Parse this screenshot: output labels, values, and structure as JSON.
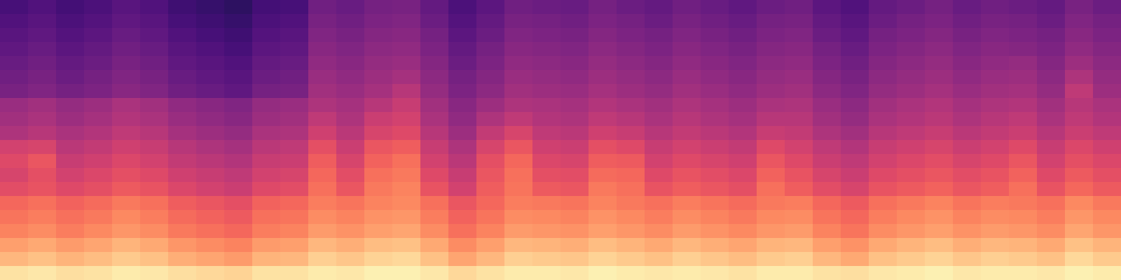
{
  "chart_data": {
    "type": "heatmap",
    "tick_labels": false,
    "zlim": [
      0,
      100
    ],
    "cells": [
      [
        94,
        95,
        93,
        94,
        96,
        95,
        93,
        92,
        91,
        94,
        94,
        96,
        95,
        97,
        97,
        95,
        92,
        94,
        96,
        96,
        95,
        97,
        96,
        95,
        96,
        95,
        94,
        96,
        96,
        94,
        93,
        95,
        96,
        97,
        95,
        96,
        96,
        95,
        97,
        96
      ],
      [
        85,
        87,
        84,
        86,
        89,
        87,
        83,
        81,
        79,
        84,
        85,
        90,
        88,
        91,
        92,
        87,
        81,
        85,
        90,
        89,
        88,
        91,
        89,
        87,
        90,
        88,
        86,
        89,
        90,
        85,
        82,
        87,
        89,
        91,
        88,
        90,
        89,
        87,
        92,
        89
      ],
      [
        80,
        82,
        79,
        81,
        84,
        82,
        78,
        76,
        74,
        79,
        80,
        85,
        83,
        86,
        87,
        82,
        76,
        80,
        85,
        84,
        83,
        86,
        84,
        82,
        85,
        83,
        81,
        84,
        85,
        80,
        77,
        82,
        84,
        86,
        83,
        85,
        84,
        82,
        87,
        84
      ],
      [
        74,
        76,
        73,
        75,
        78,
        76,
        72,
        70,
        68,
        73,
        74,
        79,
        77,
        80,
        81,
        76,
        70,
        74,
        79,
        78,
        77,
        80,
        78,
        76,
        79,
        77,
        75,
        78,
        79,
        74,
        71,
        76,
        78,
        80,
        77,
        79,
        78,
        76,
        81,
        78
      ],
      [
        71,
        73,
        70,
        72,
        75,
        73,
        69,
        67,
        65,
        70,
        71,
        76,
        74,
        77,
        78,
        73,
        67,
        71,
        76,
        75,
        74,
        77,
        75,
        73,
        76,
        74,
        72,
        75,
        76,
        71,
        68,
        73,
        75,
        77,
        74,
        76,
        75,
        73,
        78,
        75
      ],
      [
        68,
        70,
        67,
        69,
        72,
        70,
        66,
        64,
        62,
        67,
        68,
        73,
        71,
        74,
        75,
        70,
        64,
        68,
        73,
        72,
        71,
        74,
        72,
        70,
        73,
        71,
        69,
        72,
        73,
        68,
        65,
        70,
        72,
        74,
        71,
        73,
        72,
        70,
        75,
        72
      ],
      [
        61,
        63,
        60,
        62,
        65,
        63,
        59,
        57,
        55,
        60,
        61,
        70,
        64,
        72,
        74,
        63,
        57,
        66,
        71,
        65,
        64,
        72,
        70,
        63,
        66,
        64,
        62,
        70,
        66,
        61,
        58,
        63,
        65,
        67,
        64,
        66,
        70,
        63,
        68,
        65
      ],
      [
        58,
        62,
        57,
        59,
        62,
        60,
        56,
        54,
        52,
        57,
        58,
        68,
        61,
        70,
        72,
        60,
        54,
        64,
        70,
        62,
        61,
        69,
        68,
        60,
        63,
        61,
        59,
        67,
        63,
        58,
        55,
        60,
        62,
        64,
        61,
        63,
        67,
        60,
        65,
        62
      ],
      [
        60,
        64,
        54,
        56,
        59,
        57,
        53,
        51,
        49,
        54,
        55,
        66,
        58,
        67,
        70,
        57,
        51,
        62,
        68,
        59,
        58,
        66,
        65,
        57,
        60,
        58,
        56,
        64,
        60,
        55,
        52,
        57,
        59,
        61,
        58,
        60,
        64,
        57,
        62,
        59
      ],
      [
        57,
        58,
        51,
        53,
        56,
        54,
        50,
        48,
        46,
        51,
        52,
        62,
        55,
        64,
        66,
        54,
        48,
        58,
        64,
        56,
        55,
        62,
        60,
        54,
        57,
        55,
        53,
        60,
        57,
        52,
        49,
        54,
        56,
        58,
        55,
        57,
        60,
        54,
        59,
        56
      ],
      [
        48,
        50,
        47,
        49,
        52,
        50,
        46,
        44,
        42,
        47,
        48,
        56,
        51,
        58,
        60,
        50,
        44,
        53,
        58,
        52,
        51,
        56,
        54,
        50,
        53,
        51,
        49,
        54,
        53,
        48,
        45,
        50,
        52,
        54,
        51,
        53,
        55,
        50,
        55,
        52
      ],
      [
        45,
        47,
        44,
        46,
        49,
        47,
        43,
        41,
        39,
        44,
        45,
        52,
        48,
        55,
        57,
        47,
        41,
        48,
        52,
        49,
        48,
        52,
        50,
        47,
        50,
        48,
        46,
        50,
        50,
        45,
        42,
        47,
        49,
        51,
        48,
        50,
        52,
        47,
        52,
        49
      ],
      [
        43,
        45,
        42,
        44,
        47,
        45,
        41,
        39,
        37,
        42,
        43,
        48,
        46,
        50,
        54,
        45,
        39,
        44,
        48,
        47,
        46,
        49,
        47,
        45,
        48,
        46,
        44,
        47,
        48,
        43,
        40,
        45,
        47,
        49,
        46,
        48,
        49,
        45,
        50,
        47
      ],
      [
        35,
        37,
        34,
        36,
        39,
        37,
        33,
        31,
        29,
        34,
        35,
        45,
        43,
        46,
        50,
        42,
        36,
        40,
        45,
        44,
        43,
        46,
        44,
        42,
        45,
        43,
        41,
        44,
        45,
        40,
        37,
        42,
        44,
        46,
        43,
        45,
        46,
        42,
        52,
        44
      ],
      [
        33,
        35,
        32,
        34,
        37,
        35,
        31,
        29,
        27,
        32,
        33,
        43,
        41,
        44,
        46,
        40,
        34,
        38,
        43,
        42,
        41,
        44,
        42,
        40,
        43,
        41,
        39,
        42,
        43,
        38,
        35,
        40,
        42,
        44,
        41,
        43,
        44,
        40,
        48,
        42
      ],
      [
        31,
        33,
        30,
        32,
        35,
        33,
        29,
        27,
        25,
        30,
        31,
        41,
        39,
        42,
        43,
        38,
        32,
        36,
        41,
        40,
        39,
        42,
        40,
        38,
        41,
        39,
        37,
        40,
        41,
        36,
        33,
        38,
        40,
        42,
        39,
        41,
        42,
        38,
        44,
        40
      ],
      [
        29,
        31,
        28,
        30,
        33,
        31,
        27,
        25,
        23,
        28,
        29,
        39,
        37,
        40,
        41,
        36,
        30,
        34,
        39,
        38,
        37,
        40,
        38,
        36,
        39,
        37,
        35,
        38,
        39,
        34,
        31,
        36,
        38,
        40,
        37,
        39,
        38,
        36,
        41,
        38
      ],
      [
        27,
        29,
        26,
        28,
        31,
        29,
        25,
        23,
        21,
        26,
        27,
        37,
        35,
        38,
        39,
        34,
        28,
        32,
        37,
        36,
        35,
        38,
        36,
        34,
        37,
        35,
        33,
        36,
        37,
        32,
        29,
        34,
        36,
        38,
        35,
        37,
        36,
        34,
        39,
        36
      ],
      [
        25,
        27,
        24,
        26,
        29,
        27,
        23,
        21,
        19,
        24,
        25,
        35,
        33,
        36,
        37,
        32,
        26,
        30,
        35,
        34,
        33,
        36,
        34,
        32,
        35,
        33,
        31,
        34,
        35,
        30,
        27,
        32,
        34,
        36,
        33,
        35,
        34,
        32,
        37,
        34
      ],
      [
        23,
        25,
        22,
        24,
        27,
        25,
        21,
        19,
        17,
        22,
        23,
        33,
        31,
        34,
        35,
        30,
        24,
        28,
        33,
        32,
        31,
        34,
        32,
        30,
        33,
        31,
        29,
        32,
        33,
        28,
        25,
        30,
        32,
        34,
        31,
        33,
        32,
        30,
        35,
        32
      ]
    ]
  }
}
